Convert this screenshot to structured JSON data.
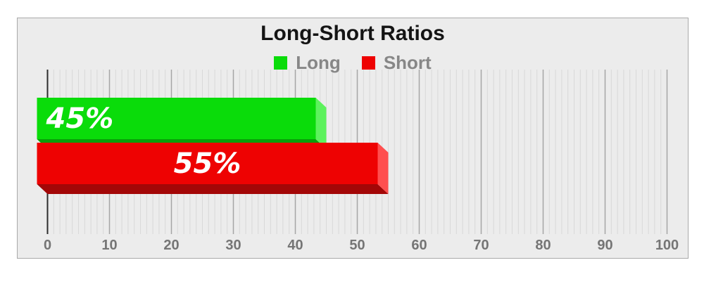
{
  "window": {
    "background_color": "#ffffff"
  },
  "chart": {
    "title": "Long-Short Ratios",
    "title_color": "#141414",
    "frame_border_color": "#a9a9a9",
    "plot_background_color": "#ececec",
    "legend": [
      {
        "label": "Long",
        "color": "#0adc0a"
      },
      {
        "label": "Short",
        "color": "#ee0202"
      }
    ],
    "legend_text_color": "#878787",
    "axis": {
      "tick_labels": [
        "0",
        "10",
        "20",
        "30",
        "40",
        "50",
        "60",
        "70",
        "80",
        "90",
        "100"
      ],
      "tick_label_color": "#757575",
      "major_grid_color": "#a6a6a6",
      "minor_grid_color": "#d9d9d9",
      "zero_line_color": "#2d2d2d"
    }
  },
  "chart_data": {
    "type": "bar",
    "orientation": "horizontal",
    "style": "3d",
    "title": "Long-Short Ratios",
    "categories": [
      "Long",
      "Short"
    ],
    "values": [
      45,
      55
    ],
    "value_labels": [
      "45%",
      "55%"
    ],
    "value_label_color": "#ffffff",
    "value_label_align": [
      "start",
      "center"
    ],
    "series_colors": [
      {
        "front": "#0adc0a",
        "side": "#5df25d",
        "bottom": "#0a9e0a"
      },
      {
        "front": "#ee0202",
        "side": "#ff4f4f",
        "bottom": "#a30707"
      }
    ],
    "xlim": [
      0,
      100
    ],
    "x_ticks": [
      0,
      10,
      20,
      30,
      40,
      50,
      60,
      70,
      80,
      90,
      100
    ],
    "minor_tick_step": 1,
    "grid": true,
    "legend_position": "top"
  }
}
